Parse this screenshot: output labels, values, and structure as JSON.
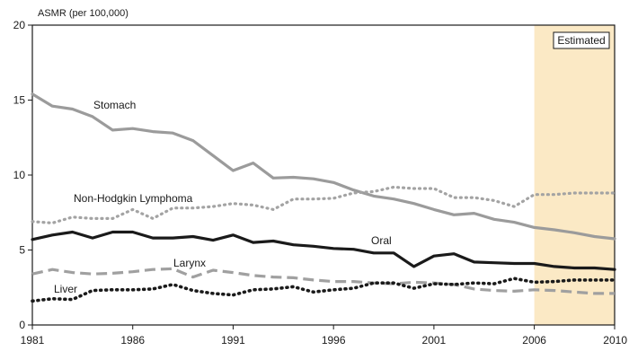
{
  "chart_data": {
    "type": "line",
    "ylabel": "ASMR (per 100,000)",
    "xlim": [
      1981,
      2010
    ],
    "ylim": [
      0,
      20
    ],
    "yticks": [
      0,
      5,
      10,
      15,
      20
    ],
    "xticks": [
      1981,
      1986,
      1991,
      1996,
      2001,
      2006,
      2010
    ],
    "grid": false,
    "estimated_region": {
      "from": 2006,
      "to": 2010,
      "label": "Estimated",
      "color": "#fbe9c5"
    },
    "x": [
      1981,
      1982,
      1983,
      1984,
      1985,
      1986,
      1987,
      1988,
      1989,
      1990,
      1991,
      1992,
      1993,
      1994,
      1995,
      1996,
      1997,
      1998,
      1999,
      2000,
      2001,
      2002,
      2003,
      2004,
      2005,
      2006,
      2007,
      2008,
      2009,
      2010
    ],
    "series": [
      {
        "name": "Stomach",
        "style": "solid-gray",
        "color": "#9b9b9b",
        "values": [
          15.4,
          14.6,
          14.4,
          13.9,
          13.0,
          13.1,
          12.9,
          12.8,
          12.3,
          11.3,
          10.3,
          10.8,
          9.8,
          9.85,
          9.75,
          9.5,
          9.0,
          8.6,
          8.4,
          8.1,
          7.7,
          7.35,
          7.45,
          7.05,
          6.85,
          6.5,
          6.35,
          6.15,
          5.9,
          5.75
        ]
      },
      {
        "name": "Non-Hodgkin Lymphoma",
        "style": "dotted-gray",
        "color": "#a3a3a3",
        "values": [
          6.9,
          6.8,
          7.2,
          7.1,
          7.1,
          7.7,
          7.1,
          7.8,
          7.8,
          7.9,
          8.1,
          8.0,
          7.7,
          8.4,
          8.4,
          8.45,
          8.8,
          8.9,
          9.2,
          9.1,
          9.1,
          8.5,
          8.5,
          8.3,
          7.9,
          8.7,
          8.7,
          8.8,
          8.8,
          8.8
        ]
      },
      {
        "name": "Oral",
        "style": "solid-black",
        "color": "#1a1a1a",
        "values": [
          5.7,
          6.0,
          6.2,
          5.8,
          6.2,
          6.2,
          5.8,
          5.8,
          5.9,
          5.65,
          6.0,
          5.5,
          5.6,
          5.35,
          5.25,
          5.1,
          5.05,
          4.8,
          4.8,
          3.9,
          4.6,
          4.75,
          4.2,
          4.15,
          4.1,
          4.1,
          3.9,
          3.8,
          3.8,
          3.7
        ]
      },
      {
        "name": "Larynx",
        "style": "dashed-gray",
        "color": "#a0a0a0",
        "values": [
          3.4,
          3.7,
          3.5,
          3.4,
          3.45,
          3.55,
          3.7,
          3.75,
          3.2,
          3.65,
          3.5,
          3.3,
          3.2,
          3.15,
          3.0,
          2.9,
          2.9,
          2.8,
          2.75,
          2.85,
          2.8,
          2.7,
          2.4,
          2.3,
          2.25,
          2.35,
          2.3,
          2.2,
          2.1,
          2.1
        ]
      },
      {
        "name": "Liver",
        "style": "dotted-black",
        "color": "#1a1a1a",
        "values": [
          1.6,
          1.75,
          1.7,
          2.3,
          2.35,
          2.35,
          2.4,
          2.7,
          2.3,
          2.1,
          2.0,
          2.35,
          2.4,
          2.55,
          2.2,
          2.35,
          2.45,
          2.8,
          2.8,
          2.45,
          2.75,
          2.7,
          2.8,
          2.75,
          3.1,
          2.85,
          2.9,
          3.0,
          3.0,
          3.0
        ]
      }
    ]
  }
}
